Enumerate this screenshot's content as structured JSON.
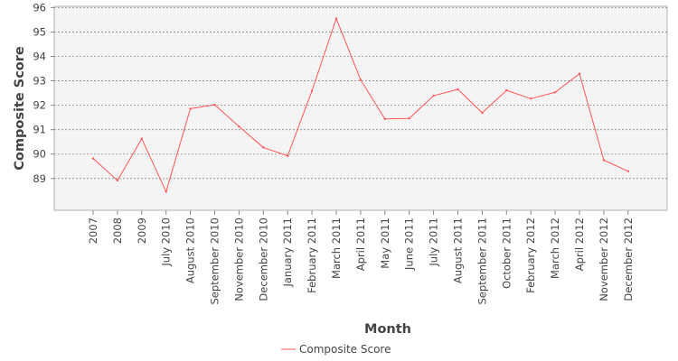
{
  "chart_data": {
    "type": "line",
    "title": "",
    "xlabel": "Month",
    "ylabel": "Composite Score",
    "categories": [
      "2007",
      "2008",
      "2009",
      "July 2010",
      "August 2010",
      "September 2010",
      "November 2010",
      "December 2010",
      "January 2011",
      "February 2011",
      "March 2011",
      "April 2011",
      "May 2011",
      "June 2011",
      "July 2011",
      "August 2011",
      "September 2011",
      "October 2011",
      "February 2012",
      "March 2012",
      "April 2012",
      "November 2012",
      "December 2012"
    ],
    "series": [
      {
        "name": "Composite Score",
        "color": "#ff5555",
        "values": [
          89.82,
          88.92,
          90.63,
          88.46,
          91.86,
          92.02,
          91.13,
          90.27,
          89.93,
          92.59,
          95.55,
          93.04,
          91.44,
          91.46,
          92.39,
          92.65,
          91.69,
          92.61,
          92.27,
          92.53,
          93.29,
          89.75,
          89.3
        ]
      }
    ],
    "yticks": [
      89,
      90,
      91,
      92,
      93,
      94,
      95,
      96
    ],
    "ylim": [
      87.7,
      96.05
    ],
    "grid": true,
    "legend_position": "bottom"
  }
}
